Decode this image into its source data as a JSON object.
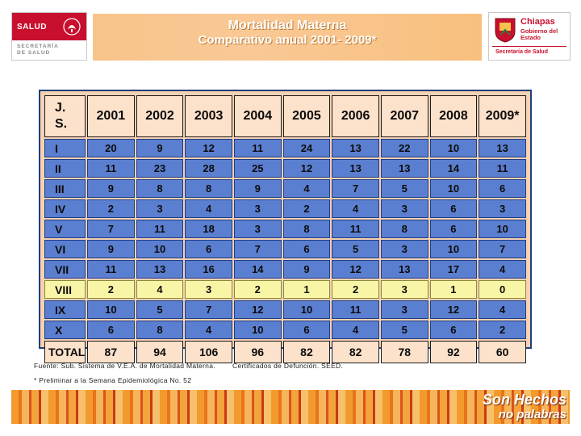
{
  "header": {
    "left_logo": {
      "word": "SALUD",
      "line1": "SECRETARÍA",
      "line2": "DE SALUD"
    },
    "title": "Mortalidad  Materna",
    "subtitle": "Comparativo anual 2001- 2009*",
    "right_logo": {
      "state": "Chiapas",
      "gov": "Gobierno del Estado",
      "sec": "Secretaría de Salud"
    }
  },
  "table": {
    "corner_line1": "J.",
    "corner_line2": "S.",
    "years": [
      "2001",
      "2002",
      "2003",
      "2004",
      "2005",
      "2006",
      "2007",
      "2008",
      "2009*"
    ],
    "rows": [
      {
        "label": "I",
        "values": [
          "20",
          "9",
          "12",
          "11",
          "24",
          "13",
          "22",
          "10",
          "13"
        ]
      },
      {
        "label": "II",
        "values": [
          "11",
          "23",
          "28",
          "25",
          "12",
          "13",
          "13",
          "14",
          "11"
        ]
      },
      {
        "label": "III",
        "values": [
          "9",
          "8",
          "8",
          "9",
          "4",
          "7",
          "5",
          "10",
          "6"
        ]
      },
      {
        "label": "IV",
        "values": [
          "2",
          "3",
          "4",
          "3",
          "2",
          "4",
          "3",
          "6",
          "3"
        ]
      },
      {
        "label": "V",
        "values": [
          "7",
          "11",
          "18",
          "3",
          "8",
          "11",
          "8",
          "6",
          "10"
        ]
      },
      {
        "label": "VI",
        "values": [
          "9",
          "10",
          "6",
          "7",
          "6",
          "5",
          "3",
          "10",
          "7"
        ]
      },
      {
        "label": "VII",
        "values": [
          "11",
          "13",
          "16",
          "14",
          "9",
          "12",
          "13",
          "17",
          "4"
        ]
      },
      {
        "label": "VIII",
        "values": [
          "2",
          "4",
          "3",
          "2",
          "1",
          "2",
          "3",
          "1",
          "0"
        ]
      },
      {
        "label": "IX",
        "values": [
          "10",
          "5",
          "7",
          "12",
          "10",
          "11",
          "3",
          "12",
          "4"
        ]
      },
      {
        "label": "X",
        "values": [
          "6",
          "8",
          "4",
          "10",
          "6",
          "4",
          "5",
          "6",
          "2"
        ]
      }
    ],
    "total_label": "TOTAL",
    "totals": [
      "87",
      "94",
      "106",
      "96",
      "82",
      "82",
      "78",
      "92",
      "60"
    ]
  },
  "notes": {
    "source": "Fuente:  Sub. Sistema de V.E.A. de Mortalidad Materna.",
    "certs": "Certificados de Defunción.  SEED.",
    "preliminary": "* Preliminar a la Semana Epidemiológica  No.  52"
  },
  "footer": {
    "slogan_line1": "Son Hechos",
    "slogan_line2": "no palabras"
  }
}
